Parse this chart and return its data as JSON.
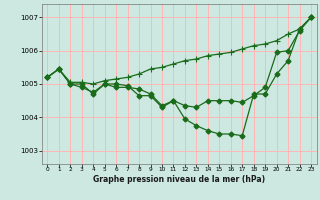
{
  "title": "Graphe pression niveau de la mer (hPa)",
  "bg_color": "#cce8e0",
  "grid_color": "#ffb6b6",
  "line_color": "#1a6b1a",
  "xlim": [
    -0.5,
    23.5
  ],
  "ylim": [
    1002.6,
    1007.4
  ],
  "yticks": [
    1003,
    1004,
    1005,
    1006,
    1007
  ],
  "xticks": [
    0,
    1,
    2,
    3,
    4,
    5,
    6,
    7,
    8,
    9,
    10,
    11,
    12,
    13,
    14,
    15,
    16,
    17,
    18,
    19,
    20,
    21,
    22,
    23
  ],
  "series1_x": [
    0,
    1,
    2,
    3,
    4,
    5,
    6,
    7,
    8,
    9,
    10,
    11,
    12,
    13,
    14,
    15,
    16,
    17,
    18,
    19,
    20,
    21,
    22,
    23
  ],
  "series1_y": [
    1005.2,
    1005.45,
    1005.0,
    1004.9,
    1004.75,
    1005.0,
    1004.9,
    1004.9,
    1004.85,
    1004.7,
    1004.35,
    1004.5,
    1004.35,
    1004.3,
    1004.5,
    1004.5,
    1004.5,
    1004.45,
    1004.65,
    1004.9,
    1005.95,
    1006.0,
    1006.6,
    1007.0
  ],
  "series2_x": [
    0,
    1,
    2,
    3,
    4,
    5,
    6,
    7,
    8,
    9,
    10,
    11,
    12,
    13,
    14,
    15,
    16,
    17,
    18,
    19,
    20,
    21,
    22,
    23
  ],
  "series2_y": [
    1005.2,
    1005.45,
    1005.0,
    1005.0,
    1004.7,
    1005.0,
    1005.0,
    1004.95,
    1004.65,
    1004.65,
    1004.3,
    1004.5,
    1003.95,
    1003.75,
    1003.6,
    1003.5,
    1003.5,
    1003.45,
    1004.7,
    1004.7,
    1005.3,
    1005.7,
    1006.65,
    1007.0
  ],
  "series3_x": [
    0,
    1,
    2,
    3,
    4,
    5,
    6,
    7,
    8,
    9,
    10,
    11,
    12,
    13,
    14,
    15,
    16,
    17,
    18,
    19,
    20,
    21,
    22,
    23
  ],
  "series3_y": [
    1005.2,
    1005.45,
    1005.05,
    1005.05,
    1005.0,
    1005.1,
    1005.15,
    1005.2,
    1005.3,
    1005.45,
    1005.5,
    1005.6,
    1005.7,
    1005.75,
    1005.85,
    1005.9,
    1005.95,
    1006.05,
    1006.15,
    1006.2,
    1006.3,
    1006.5,
    1006.65,
    1007.0
  ]
}
